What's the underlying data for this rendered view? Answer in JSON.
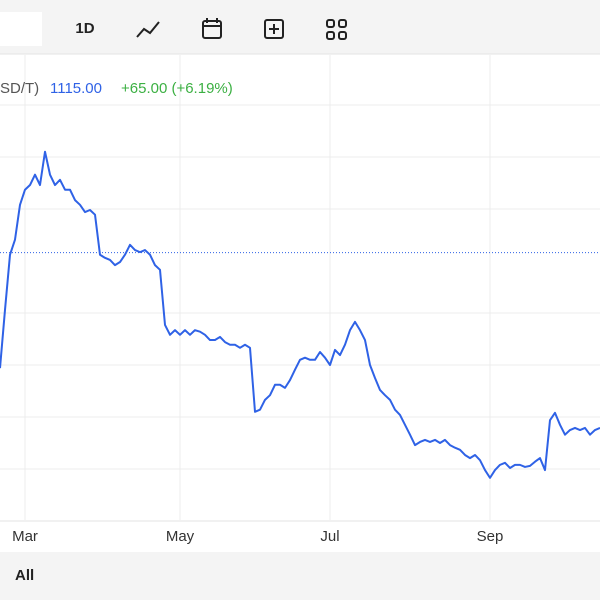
{
  "toolbar": {
    "interval": "1D"
  },
  "legend": {
    "symbol": "SD/T)",
    "price": "1115.00",
    "change": "+65.00 (+6.19%)"
  },
  "range_button": "All",
  "chart_data": {
    "type": "line",
    "color": "#2f62e6",
    "ylim": [
      938,
      1832
    ],
    "reference_line": 1452,
    "categories": [
      null,
      null,
      null,
      null,
      null,
      "Mar",
      null,
      null,
      null,
      null,
      null,
      null,
      null,
      null,
      null,
      null,
      null,
      null,
      null,
      null,
      null,
      null,
      null,
      null,
      null,
      null,
      null,
      null,
      null,
      null,
      null,
      null,
      null,
      null,
      null,
      null,
      "May",
      null,
      null,
      null,
      null,
      null,
      null,
      null,
      null,
      null,
      null,
      null,
      null,
      null,
      null,
      null,
      null,
      null,
      null,
      null,
      null,
      null,
      null,
      null,
      null,
      null,
      null,
      null,
      null,
      null,
      "Jul",
      null,
      null,
      null,
      null,
      null,
      null,
      null,
      null,
      null,
      null,
      null,
      null,
      null,
      null,
      null,
      null,
      null,
      null,
      null,
      null,
      null,
      null,
      null,
      null,
      null,
      null,
      null,
      null,
      null,
      null,
      null,
      "Sep",
      null,
      null,
      null,
      null,
      null,
      null,
      null,
      null,
      null,
      null,
      null,
      null,
      null,
      null,
      null,
      null,
      null,
      null,
      null,
      null,
      null,
      null
    ],
    "values": [
      1230,
      1342,
      1448,
      1477,
      1544,
      1573,
      1582,
      1602,
      1582,
      1646,
      1602,
      1582,
      1592,
      1573,
      1573,
      1553,
      1544,
      1530,
      1534,
      1525,
      1448,
      1442,
      1438,
      1428,
      1434,
      1448,
      1467,
      1457,
      1453,
      1457,
      1448,
      1428,
      1419,
      1313,
      1294,
      1303,
      1294,
      1303,
      1294,
      1303,
      1300,
      1294,
      1284,
      1284,
      1290,
      1280,
      1275,
      1275,
      1269,
      1275,
      1269,
      1146,
      1150,
      1169,
      1178,
      1198,
      1198,
      1192,
      1207,
      1227,
      1246,
      1250,
      1246,
      1246,
      1261,
      1250,
      1236,
      1265,
      1255,
      1275,
      1303,
      1319,
      1303,
      1284,
      1236,
      1211,
      1188,
      1178,
      1169,
      1150,
      1140,
      1121,
      1102,
      1082,
      1088,
      1092,
      1088,
      1092,
      1086,
      1092,
      1082,
      1077,
      1073,
      1063,
      1057,
      1063,
      1053,
      1034,
      1019,
      1034,
      1044,
      1048,
      1038,
      1044,
      1044,
      1040,
      1042,
      1050,
      1057,
      1034,
      1130,
      1144,
      1121,
      1102,
      1111,
      1115,
      1111,
      1115,
      1102,
      1111,
      1115
    ]
  }
}
